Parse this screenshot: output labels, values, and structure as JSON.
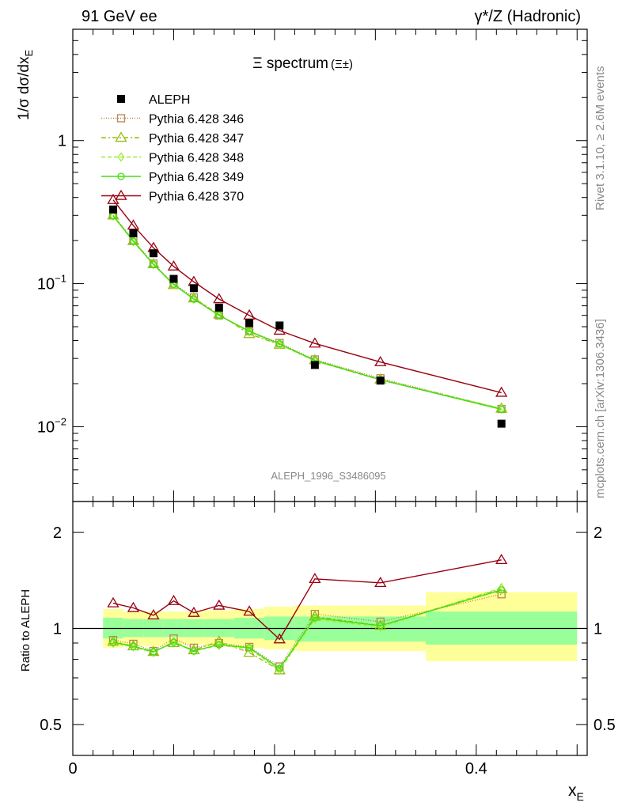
{
  "header": {
    "left": "91 GeV ee",
    "right": "γ*/Z (Hadronic)"
  },
  "side": {
    "rivet": "Rivet 3.1.10, ≥ 2.6M events",
    "mcplots": "mcplots.cern.ch [arXiv:1306.3436]"
  },
  "watermark": "ALEPH_1996_S3486095",
  "chart_data": [
    {
      "type": "scatter",
      "title": "Ξ spectrum",
      "title_suffix": "(Ξ±)",
      "ylabel": "1/σ dσ/dx_E",
      "ylabel_main": "1/σ dσ/dx",
      "ylabel_sub": "E",
      "yscale": "log",
      "ylim": [
        0.003,
        6
      ],
      "xlim": [
        0,
        0.51
      ],
      "yticks": [
        {
          "v": 0.01,
          "base": "10",
          "exp": "−2"
        },
        {
          "v": 0.1,
          "base": "10",
          "exp": "−1"
        },
        {
          "v": 1,
          "base": "1",
          "exp": ""
        }
      ],
      "legend_position": "top-left",
      "series": [
        {
          "name": "ALEPH",
          "color": "#000000",
          "marker": "square-filled",
          "x": [
            0.04,
            0.06,
            0.08,
            0.1,
            0.12,
            0.145,
            0.175,
            0.205,
            0.24,
            0.305,
            0.425
          ],
          "y": [
            0.33,
            0.225,
            0.163,
            0.108,
            0.093,
            0.068,
            0.053,
            0.051,
            0.027,
            0.021,
            0.0105
          ]
        },
        {
          "name": "Pythia 6.428 346",
          "color": "#b8864b",
          "marker": "square-open",
          "dash": "1,2",
          "x": [
            0.04,
            0.06,
            0.08,
            0.1,
            0.12,
            0.145,
            0.175,
            0.205,
            0.24,
            0.305,
            0.425
          ],
          "y": [
            0.302,
            0.201,
            0.138,
            0.1,
            0.08,
            0.06,
            0.0465,
            0.0385,
            0.0295,
            0.0218,
            0.0133
          ]
        },
        {
          "name": "Pythia 6.428 347",
          "color": "#99bb11",
          "marker": "triangle-open",
          "dash": "6,3,2,3",
          "x": [
            0.04,
            0.06,
            0.08,
            0.1,
            0.12,
            0.145,
            0.175,
            0.205,
            0.24,
            0.305,
            0.425
          ],
          "y": [
            0.3,
            0.199,
            0.137,
            0.098,
            0.079,
            0.061,
            0.0445,
            0.0375,
            0.0292,
            0.0214,
            0.0134
          ]
        },
        {
          "name": "Pythia 6.428 348",
          "color": "#99ee33",
          "marker": "diamond-open",
          "dash": "5,3",
          "x": [
            0.04,
            0.06,
            0.08,
            0.1,
            0.12,
            0.145,
            0.175,
            0.205,
            0.24,
            0.305,
            0.425
          ],
          "y": [
            0.297,
            0.197,
            0.136,
            0.098,
            0.078,
            0.06,
            0.046,
            0.0375,
            0.0288,
            0.0212,
            0.0134
          ]
        },
        {
          "name": "Pythia 6.428 349",
          "color": "#44dd11",
          "marker": "circle-open",
          "dash": "",
          "x": [
            0.04,
            0.06,
            0.08,
            0.1,
            0.12,
            0.145,
            0.175,
            0.205,
            0.24,
            0.305,
            0.425
          ],
          "y": [
            0.298,
            0.198,
            0.136,
            0.099,
            0.078,
            0.06,
            0.0465,
            0.038,
            0.029,
            0.0213,
            0.0132
          ]
        },
        {
          "name": "Pythia 6.428 370",
          "color": "#990011",
          "marker": "triangle-open",
          "dash": "",
          "x": [
            0.04,
            0.06,
            0.08,
            0.1,
            0.12,
            0.145,
            0.175,
            0.205,
            0.24,
            0.305,
            0.425
          ],
          "y": [
            0.385,
            0.255,
            0.178,
            0.132,
            0.103,
            0.078,
            0.06,
            0.047,
            0.0382,
            0.0283,
            0.0173
          ]
        }
      ]
    },
    {
      "type": "line",
      "ylabel": "Ratio to ALEPH",
      "xlabel": "x_E",
      "xlabel_main": "x",
      "xlabel_sub": "E",
      "yscale": "log",
      "ylim": [
        0.4,
        2.5
      ],
      "xlim": [
        0,
        0.51
      ],
      "yticks": [
        {
          "v": 0.5,
          "label": "0.5"
        },
        {
          "v": 1,
          "label": "1"
        },
        {
          "v": 2,
          "label": "2"
        }
      ],
      "xticks": [
        {
          "v": 0,
          "label": "0"
        },
        {
          "v": 0.2,
          "label": "0.2"
        },
        {
          "v": 0.4,
          "label": "0.4"
        }
      ],
      "reference_line": 1,
      "uncertainty_bins": [
        {
          "x0": 0.03,
          "x1": 0.05,
          "stat": [
            0.93,
            1.08
          ],
          "total": [
            0.87,
            1.15
          ]
        },
        {
          "x0": 0.05,
          "x1": 0.07,
          "stat": [
            0.94,
            1.07
          ],
          "total": [
            0.88,
            1.13
          ]
        },
        {
          "x0": 0.07,
          "x1": 0.09,
          "stat": [
            0.94,
            1.07
          ],
          "total": [
            0.88,
            1.13
          ]
        },
        {
          "x0": 0.09,
          "x1": 0.11,
          "stat": [
            0.94,
            1.07
          ],
          "total": [
            0.89,
            1.13
          ]
        },
        {
          "x0": 0.11,
          "x1": 0.13,
          "stat": [
            0.94,
            1.07
          ],
          "total": [
            0.89,
            1.13
          ]
        },
        {
          "x0": 0.13,
          "x1": 0.16,
          "stat": [
            0.94,
            1.07
          ],
          "total": [
            0.88,
            1.14
          ]
        },
        {
          "x0": 0.16,
          "x1": 0.19,
          "stat": [
            0.93,
            1.08
          ],
          "total": [
            0.87,
            1.15
          ]
        },
        {
          "x0": 0.19,
          "x1": 0.22,
          "stat": [
            0.92,
            1.09
          ],
          "total": [
            0.86,
            1.17
          ]
        },
        {
          "x0": 0.22,
          "x1": 0.35,
          "stat": [
            0.91,
            1.09
          ],
          "total": [
            0.85,
            1.18
          ]
        },
        {
          "x0": 0.35,
          "x1": 0.5,
          "stat": [
            0.89,
            1.13
          ],
          "total": [
            0.79,
            1.3
          ]
        }
      ],
      "band_colors": {
        "stat": "#99ff99",
        "total": "#ffff99"
      },
      "series": [
        {
          "name": "Pythia 6.428 346",
          "color": "#b8864b",
          "marker": "square-open",
          "dash": "1,2",
          "x": [
            0.04,
            0.06,
            0.08,
            0.1,
            0.12,
            0.145,
            0.175,
            0.205,
            0.24,
            0.305,
            0.425
          ],
          "y": [
            0.92,
            0.895,
            0.85,
            0.93,
            0.87,
            0.9,
            0.875,
            0.76,
            1.11,
            1.05,
            1.28
          ]
        },
        {
          "name": "Pythia 6.428 347",
          "color": "#99bb11",
          "marker": "triangle-open",
          "dash": "6,3,2,3",
          "x": [
            0.04,
            0.06,
            0.08,
            0.1,
            0.12,
            0.145,
            0.175,
            0.205,
            0.24,
            0.305,
            0.425
          ],
          "y": [
            0.91,
            0.88,
            0.845,
            0.9,
            0.855,
            0.91,
            0.84,
            0.74,
            1.09,
            1.02,
            1.33
          ]
        },
        {
          "name": "Pythia 6.428 348",
          "color": "#99ee33",
          "marker": "diamond-open",
          "dash": "5,3",
          "x": [
            0.04,
            0.06,
            0.08,
            0.1,
            0.12,
            0.145,
            0.175,
            0.205,
            0.24,
            0.305,
            0.425
          ],
          "y": [
            0.9,
            0.875,
            0.84,
            0.91,
            0.85,
            0.885,
            0.865,
            0.74,
            1.07,
            1.01,
            1.34
          ]
        },
        {
          "name": "Pythia 6.428 349",
          "color": "#44dd11",
          "marker": "circle-open",
          "dash": "",
          "x": [
            0.04,
            0.06,
            0.08,
            0.1,
            0.12,
            0.145,
            0.175,
            0.205,
            0.24,
            0.305,
            0.425
          ],
          "y": [
            0.905,
            0.88,
            0.845,
            0.905,
            0.85,
            0.89,
            0.87,
            0.75,
            1.08,
            1.02,
            1.32
          ]
        },
        {
          "name": "Pythia 6.428 370",
          "color": "#990011",
          "marker": "triangle-open",
          "dash": "",
          "x": [
            0.04,
            0.06,
            0.08,
            0.1,
            0.12,
            0.145,
            0.175,
            0.205,
            0.24,
            0.305,
            0.425
          ],
          "y": [
            1.2,
            1.16,
            1.1,
            1.22,
            1.12,
            1.18,
            1.13,
            0.925,
            1.43,
            1.39,
            1.64
          ]
        }
      ]
    }
  ]
}
